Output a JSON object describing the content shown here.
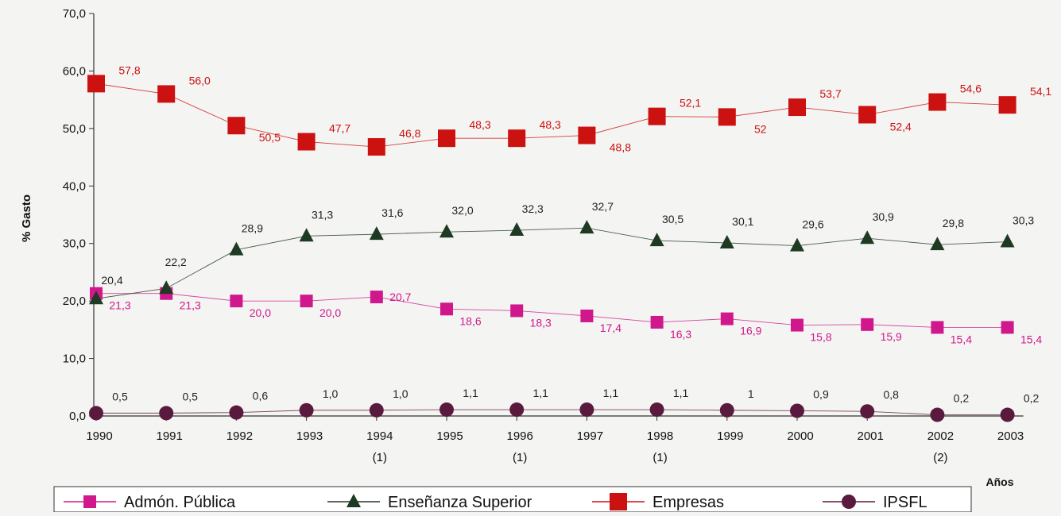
{
  "chart_data": {
    "type": "line",
    "ylabel": "% Gasto",
    "xlabel": "Años",
    "ylim": [
      0,
      70
    ],
    "yticks": [
      "0,0",
      "10,0",
      "20,0",
      "30,0",
      "40,0",
      "50,0",
      "60,0",
      "70,0"
    ],
    "ytick_values": [
      0,
      10,
      20,
      30,
      40,
      50,
      60,
      70
    ],
    "categories": [
      "1990",
      "1991",
      "1992",
      "1993",
      "1994",
      "1995",
      "1996",
      "1997",
      "1998",
      "1999",
      "2000",
      "2001",
      "2002",
      "2003"
    ],
    "category_notes": [
      "",
      "",
      "",
      "",
      "(1)",
      "",
      "(1)",
      "",
      "(1)",
      "",
      "",
      "",
      "(2)",
      ""
    ],
    "grid": false,
    "legend_position": "bottom",
    "series": [
      {
        "name": "Admón. Pública",
        "color": "#d0188c",
        "marker": "square",
        "values": [
          21.3,
          21.3,
          20.0,
          20.0,
          20.7,
          18.6,
          18.3,
          17.4,
          16.3,
          16.9,
          15.8,
          15.9,
          15.4,
          15.4
        ],
        "labels": [
          "21,3",
          "21,3",
          "20,0",
          "20,0",
          "20,7",
          "18,6",
          "18,3",
          "17,4",
          "16,3",
          "16,9",
          "15,8",
          "15,9",
          "15,4",
          "15,4"
        ]
      },
      {
        "name": "Enseñanza Superior",
        "color": "#1e3a22",
        "marker": "triangle",
        "values": [
          20.4,
          22.2,
          28.9,
          31.3,
          31.6,
          32.0,
          32.3,
          32.7,
          30.5,
          30.1,
          29.6,
          30.9,
          29.8,
          30.3
        ],
        "labels": [
          "20,4",
          "22,2",
          "28,9",
          "31,3",
          "31,6",
          "32,0",
          "32,3",
          "32,7",
          "30,5",
          "30,1",
          "29,6",
          "30,9",
          "29,8",
          "30,3"
        ]
      },
      {
        "name": "Empresas",
        "color": "#cc1111",
        "marker": "square-large",
        "values": [
          57.8,
          56.0,
          50.5,
          47.7,
          46.8,
          48.3,
          48.3,
          48.8,
          52.1,
          52.0,
          53.7,
          52.4,
          54.6,
          54.1
        ],
        "labels": [
          "57,8",
          "56,0",
          "50,5",
          "47,7",
          "46,8",
          "48,3",
          "48,3",
          "48,8",
          "52,1",
          "52",
          "53,7",
          "52,4",
          "54,6",
          "54,1"
        ]
      },
      {
        "name": "IPSFL",
        "color": "#5a1a3e",
        "marker": "circle",
        "values": [
          0.5,
          0.5,
          0.6,
          1.0,
          1.0,
          1.1,
          1.1,
          1.1,
          1.1,
          1.0,
          0.9,
          0.8,
          0.2,
          0.2
        ],
        "labels": [
          "0,5",
          "0,5",
          "0,6",
          "1,0",
          "1,0",
          "1,1",
          "1,1",
          "1,1",
          "1,1",
          "1",
          "0,9",
          "0,8",
          "0,2",
          "0,2"
        ]
      }
    ]
  }
}
